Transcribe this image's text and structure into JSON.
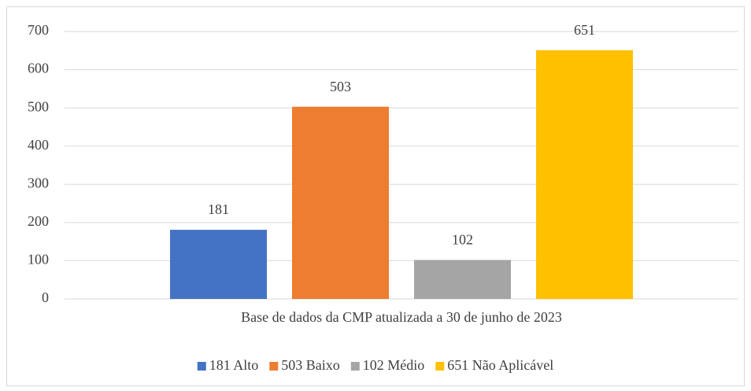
{
  "chart_data": {
    "type": "bar",
    "categories": [
      "Base de dados da CMP atualizada a 30 de junho de 2023"
    ],
    "series": [
      {
        "name": "181 Alto",
        "color": "#4472c4",
        "values": [
          181
        ]
      },
      {
        "name": "503 Baixo",
        "color": "#ed7d31",
        "values": [
          503
        ]
      },
      {
        "name": "102 Médio",
        "color": "#a5a5a5",
        "values": [
          102
        ]
      },
      {
        "name": "651 Não Aplicável",
        "color": "#ffc000",
        "values": [
          651
        ]
      }
    ],
    "ylim": [
      0,
      700
    ],
    "yticks": [
      0,
      100,
      200,
      300,
      400,
      500,
      600,
      700
    ],
    "grid": true,
    "legend": "bottom"
  }
}
